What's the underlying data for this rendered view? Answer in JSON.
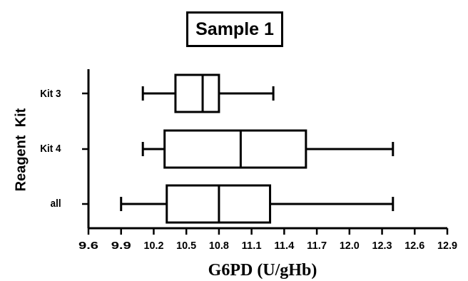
{
  "chart_data": {
    "type": "boxplot",
    "orientation": "horizontal",
    "title": "Sample 1",
    "xlabel": "G6PD (U/gHb)",
    "ylabel": "Reagent  Kit",
    "xlim": [
      9.6,
      12.9
    ],
    "x_ticks": [
      "9.6",
      "9.9",
      "10.2",
      "10.5",
      "10.8",
      "11.1",
      "11.4",
      "11.7",
      "12.0",
      "12.3",
      "12.6",
      "12.9"
    ],
    "grid": false,
    "categories": [
      "Kit 3",
      "Kit 4",
      "all"
    ],
    "boxes": [
      {
        "category": "Kit 3",
        "min": 10.1,
        "q1": 10.4,
        "median": 10.65,
        "q3": 10.8,
        "max": 11.3
      },
      {
        "category": "Kit 4",
        "min": 10.1,
        "q1": 10.3,
        "median": 11.0,
        "q3": 11.6,
        "max": 12.4
      },
      {
        "category": "all",
        "min": 9.9,
        "q1": 10.32,
        "median": 10.8,
        "q3": 11.27,
        "max": 12.4
      }
    ]
  }
}
